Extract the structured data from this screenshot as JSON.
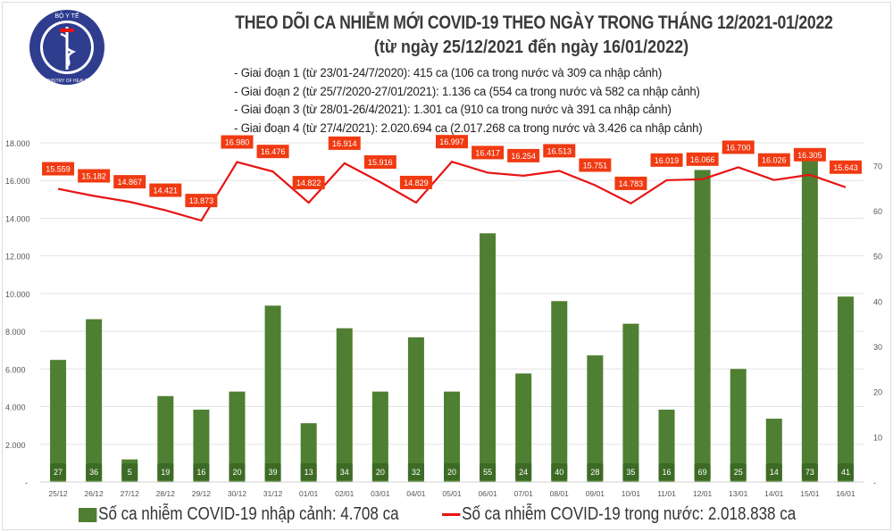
{
  "header": {
    "title": "THEO DÕI CA NHIỄM MỚI COVID-19 THEO NGÀY TRONG THÁNG 12/2021-01/2022",
    "subtitle": "(từ ngày 25/12/2021 đến ngày 16/01/2022)",
    "phases": [
      "- Giai đoạn 1 (từ 23/01-24/7/2020): 415 ca (106 ca trong nước và 309 ca nhập cảnh)",
      "- Giai đoạn 2 (từ 25/7/2020-27/01/2021): 1.136 ca (554 ca trong nước và 582 ca nhập cảnh)",
      "- Giai đoạn 3 (từ 28/01-26/4/2021): 1.301 ca (910 ca trong nước và 391 ca nhập cảnh)",
      "- Giai đoạn 4 (từ 27/4/2021): 2.020.694 ca (2.017.268 ca trong nước và 3.426 ca nhập cảnh)"
    ]
  },
  "logo": {
    "top_text": "BỘ Y TẾ",
    "bottom_text": "MINISTRY OF HEALTH"
  },
  "chart_data": {
    "type": "bar+line",
    "categories": [
      "25/12",
      "26/12",
      "27/12",
      "28/12",
      "29/12",
      "30/12",
      "31/12",
      "01/01",
      "02/01",
      "03/01",
      "04/01",
      "05/01",
      "06/01",
      "07/01",
      "08/01",
      "09/01",
      "10/01",
      "11/01",
      "12/01",
      "13/01",
      "14/01",
      "15/01",
      "16/01"
    ],
    "series": [
      {
        "name": "Số ca nhiễm COVID-19 nhập cảnh: 4.708 ca",
        "type": "bar",
        "axis": "right",
        "color": "#4f7f32",
        "values": [
          27,
          36,
          5,
          19,
          16,
          20,
          39,
          13,
          34,
          20,
          32,
          20,
          55,
          24,
          40,
          28,
          35,
          16,
          69,
          25,
          14,
          73,
          41
        ]
      },
      {
        "name": "Số ca nhiễm COVID-19 trong nước: 2.018.838 ca",
        "type": "line",
        "axis": "left",
        "color": "#e81313",
        "values": [
          15559,
          15182,
          14867,
          14421,
          13873,
          16980,
          16476,
          14822,
          16914,
          15916,
          14829,
          16997,
          16417,
          16254,
          16513,
          15751,
          14783,
          16019,
          16066,
          16700,
          16026,
          16305,
          15643
        ]
      }
    ],
    "ylim": [
      0,
      18000
    ],
    "yticks": [
      "-",
      "2.000",
      "4.000",
      "6.000",
      "8.000",
      "10.000",
      "12.000",
      "14.000",
      "16.000",
      "18.000"
    ],
    "y2lim": [
      0,
      75
    ],
    "y2ticks": [
      "-",
      "10",
      "20",
      "30",
      "40",
      "50",
      "60",
      "70"
    ],
    "grid": true,
    "legend": "bottom",
    "label_color": "#f03a12"
  }
}
